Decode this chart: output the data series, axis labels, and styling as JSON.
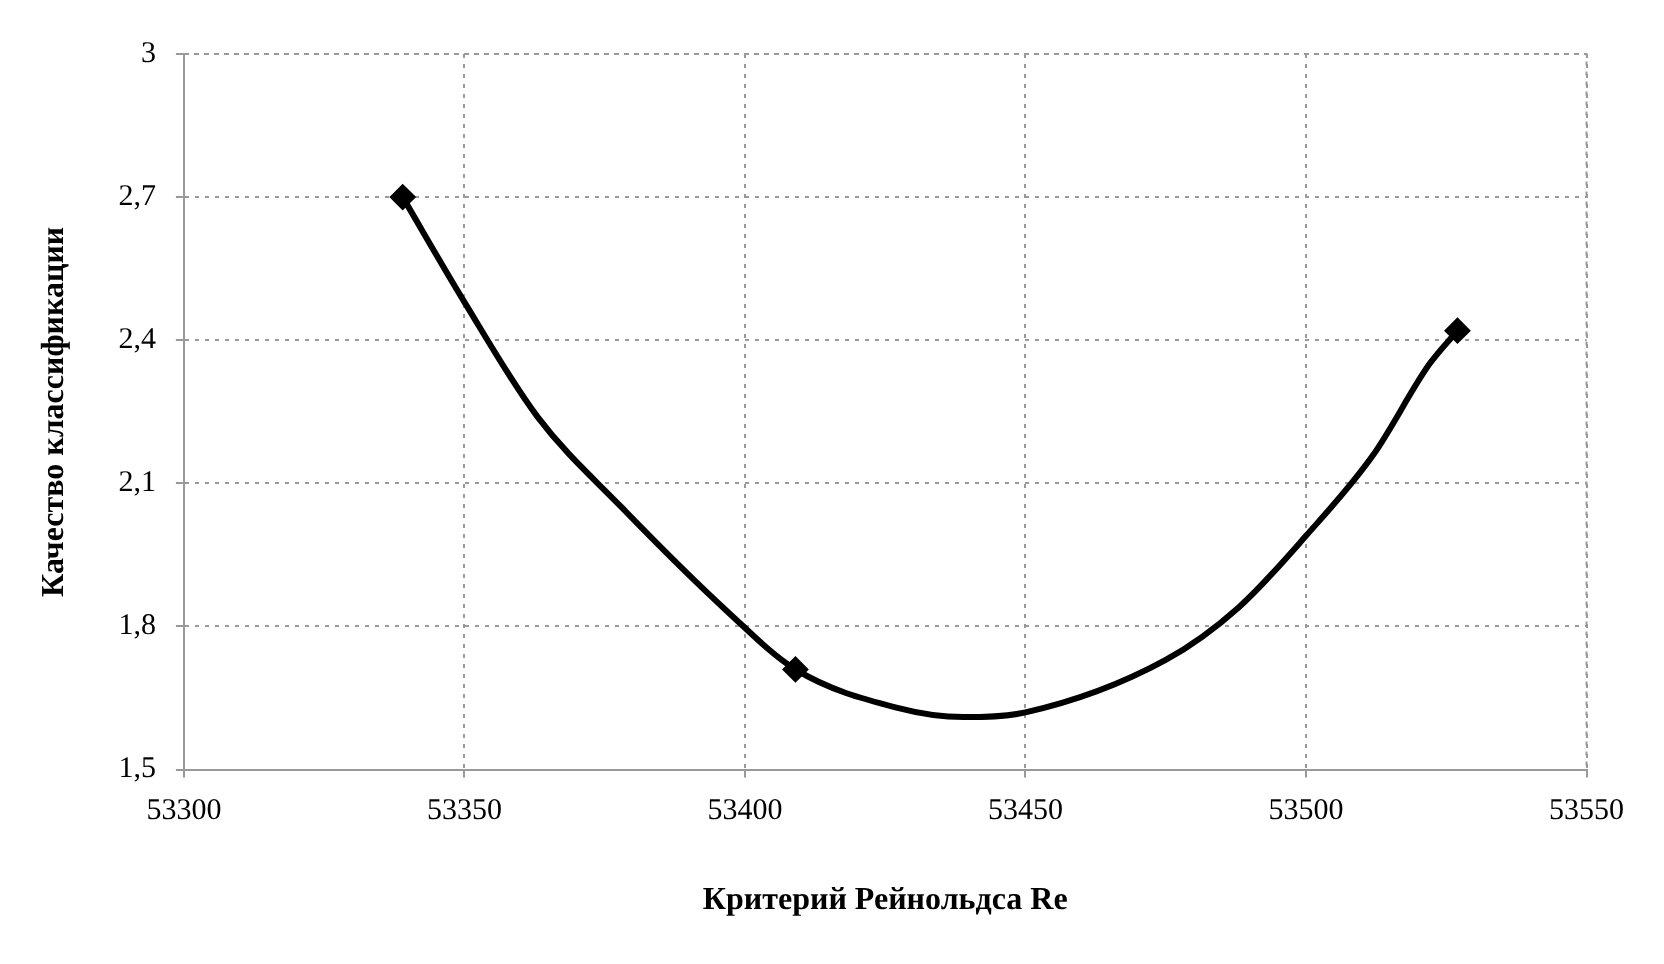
{
  "chart_data": {
    "type": "line",
    "xlabel": "Критерий Рейнольдса Re",
    "ylabel": "Качество классификации",
    "series": [
      {
        "color": "#000000",
        "marker": "none",
        "x": [
          53339,
          53350,
          53363,
          53378,
          53397,
          53409,
          53427,
          53439,
          53450,
          53475,
          53488,
          53500,
          53512,
          53522,
          53527
        ],
        "values": [
          2.7,
          2.48,
          2.24,
          2.05,
          1.83,
          1.71,
          1.63,
          1.61,
          1.62,
          1.73,
          1.84,
          1.99,
          2.16,
          2.35,
          2.42
        ]
      },
      {
        "type": "scatter",
        "color": "#000000",
        "marker": "diamond",
        "x": [
          53339,
          53409,
          53527
        ],
        "values": [
          2.7,
          1.71,
          2.42
        ]
      }
    ],
    "xlim": [
      53300,
      53550
    ],
    "xticks": [
      53300,
      53350,
      53400,
      53450,
      53500,
      53550
    ],
    "ylim": [
      1.5,
      3
    ],
    "yticks": [
      {
        "value": 1.5,
        "label": "1,5"
      },
      {
        "value": 1.8,
        "label": "1,8"
      },
      {
        "value": 2.1,
        "label": "2,1"
      },
      {
        "value": 2.4,
        "label": "2,4"
      },
      {
        "value": 2.7,
        "label": "2,7"
      },
      {
        "value": 3,
        "label": "3"
      }
    ],
    "grid": true
  }
}
